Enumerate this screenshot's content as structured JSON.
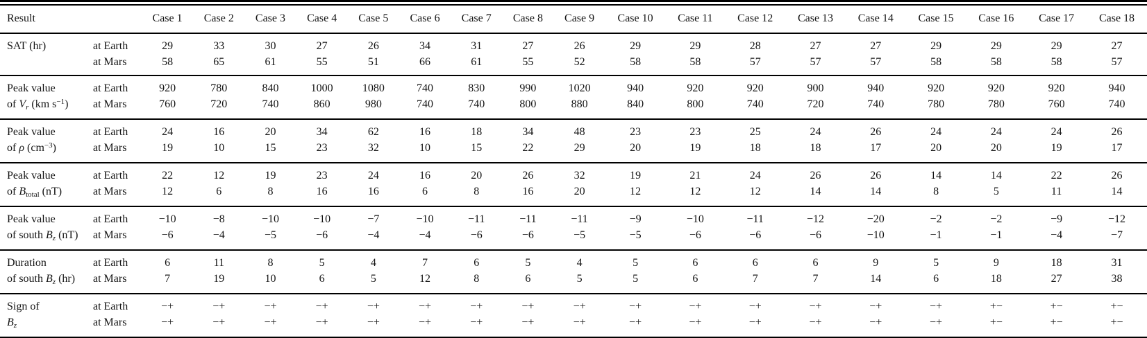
{
  "table": {
    "header": {
      "result_label": "Result",
      "cases": [
        "Case 1",
        "Case 2",
        "Case 3",
        "Case 4",
        "Case 5",
        "Case 6",
        "Case 7",
        "Case 8",
        "Case 9",
        "Case 10",
        "Case 11",
        "Case 12",
        "Case 13",
        "Case 14",
        "Case 15",
        "Case 16",
        "Case 17",
        "Case 18"
      ]
    },
    "groups": [
      {
        "id": "sat",
        "label_line1": [
          {
            "t": "SAT (hr)"
          }
        ],
        "label_line2": [],
        "rows": [
          {
            "location": "at Earth",
            "values": [
              "29",
              "33",
              "30",
              "27",
              "26",
              "34",
              "31",
              "27",
              "26",
              "29",
              "29",
              "28",
              "27",
              "27",
              "29",
              "29",
              "29",
              "27"
            ]
          },
          {
            "location": "at Mars",
            "values": [
              "58",
              "65",
              "61",
              "55",
              "51",
              "66",
              "61",
              "55",
              "52",
              "58",
              "58",
              "57",
              "57",
              "57",
              "58",
              "58",
              "58",
              "57"
            ]
          }
        ]
      },
      {
        "id": "peak-vr",
        "label_line1": [
          {
            "t": "Peak value"
          }
        ],
        "label_line2": [
          {
            "t": "of "
          },
          {
            "t": "V",
            "s": "i"
          },
          {
            "t": "r",
            "s": "subi"
          },
          {
            "t": " (km s"
          },
          {
            "t": "−1",
            "s": "sup"
          },
          {
            "t": ")"
          }
        ],
        "rows": [
          {
            "location": "at Earth",
            "values": [
              "920",
              "780",
              "840",
              "1000",
              "1080",
              "740",
              "830",
              "990",
              "1020",
              "940",
              "920",
              "920",
              "900",
              "940",
              "920",
              "920",
              "920",
              "940"
            ]
          },
          {
            "location": "at Mars",
            "values": [
              "760",
              "720",
              "740",
              "860",
              "980",
              "740",
              "740",
              "800",
              "880",
              "840",
              "800",
              "740",
              "720",
              "740",
              "780",
              "780",
              "760",
              "740"
            ]
          }
        ]
      },
      {
        "id": "peak-rho",
        "label_line1": [
          {
            "t": "Peak value"
          }
        ],
        "label_line2": [
          {
            "t": "of "
          },
          {
            "t": "ρ",
            "s": "i"
          },
          {
            "t": " (cm"
          },
          {
            "t": "−3",
            "s": "sup"
          },
          {
            "t": ")"
          }
        ],
        "rows": [
          {
            "location": "at Earth",
            "values": [
              "24",
              "16",
              "20",
              "34",
              "62",
              "16",
              "18",
              "34",
              "48",
              "23",
              "23",
              "25",
              "24",
              "26",
              "24",
              "24",
              "24",
              "26"
            ]
          },
          {
            "location": "at Mars",
            "values": [
              "19",
              "10",
              "15",
              "23",
              "32",
              "10",
              "15",
              "22",
              "29",
              "20",
              "19",
              "18",
              "18",
              "17",
              "20",
              "20",
              "19",
              "17"
            ]
          }
        ]
      },
      {
        "id": "peak-btotal",
        "label_line1": [
          {
            "t": "Peak value"
          }
        ],
        "label_line2": [
          {
            "t": "of "
          },
          {
            "t": "B",
            "s": "i"
          },
          {
            "t": "total",
            "s": "sub"
          },
          {
            "t": " (nT)"
          }
        ],
        "rows": [
          {
            "location": "at Earth",
            "values": [
              "22",
              "12",
              "19",
              "23",
              "24",
              "16",
              "20",
              "26",
              "32",
              "19",
              "21",
              "24",
              "26",
              "26",
              "14",
              "14",
              "22",
              "26"
            ]
          },
          {
            "location": "at Mars",
            "values": [
              "12",
              "6",
              "8",
              "16",
              "16",
              "6",
              "8",
              "16",
              "20",
              "12",
              "12",
              "12",
              "14",
              "14",
              "8",
              "5",
              "11",
              "14"
            ]
          }
        ]
      },
      {
        "id": "peak-south-bz",
        "label_line1": [
          {
            "t": "Peak value"
          }
        ],
        "label_line2": [
          {
            "t": "of south "
          },
          {
            "t": "B",
            "s": "i"
          },
          {
            "t": "z",
            "s": "subi"
          },
          {
            "t": " (nT)"
          }
        ],
        "rows": [
          {
            "location": "at Earth",
            "values": [
              "−10",
              "−8",
              "−10",
              "−10",
              "−7",
              "−10",
              "−11",
              "−11",
              "−11",
              "−9",
              "−10",
              "−11",
              "−12",
              "−20",
              "−2",
              "−2",
              "−9",
              "−12"
            ]
          },
          {
            "location": "at Mars",
            "values": [
              "−6",
              "−4",
              "−5",
              "−6",
              "−4",
              "−4",
              "−6",
              "−6",
              "−5",
              "−5",
              "−6",
              "−6",
              "−6",
              "−10",
              "−1",
              "−1",
              "−4",
              "−7"
            ]
          }
        ]
      },
      {
        "id": "duration-south-bz",
        "label_line1": [
          {
            "t": "Duration"
          }
        ],
        "label_line2": [
          {
            "t": "of south "
          },
          {
            "t": "B",
            "s": "i"
          },
          {
            "t": "z",
            "s": "subi"
          },
          {
            "t": " (hr)"
          }
        ],
        "rows": [
          {
            "location": "at Earth",
            "values": [
              "6",
              "11",
              "8",
              "5",
              "4",
              "7",
              "6",
              "5",
              "4",
              "5",
              "6",
              "6",
              "6",
              "9",
              "5",
              "9",
              "18",
              "31"
            ]
          },
          {
            "location": "at Mars",
            "values": [
              "7",
              "19",
              "10",
              "6",
              "5",
              "12",
              "8",
              "6",
              "5",
              "5",
              "6",
              "7",
              "7",
              "14",
              "6",
              "18",
              "27",
              "38"
            ]
          }
        ]
      },
      {
        "id": "sign-bz",
        "label_line1": [
          {
            "t": "Sign of"
          }
        ],
        "label_line2": [
          {
            "t": "B",
            "s": "i"
          },
          {
            "t": "z",
            "s": "subi"
          }
        ],
        "rows": [
          {
            "location": "at Earth",
            "values": [
              "−+",
              "−+",
              "−+",
              "−+",
              "−+",
              "−+",
              "−+",
              "−+",
              "−+",
              "−+",
              "−+",
              "−+",
              "−+",
              "−+",
              "−+",
              "+−",
              "+−",
              "+−"
            ]
          },
          {
            "location": "at Mars",
            "values": [
              "−+",
              "−+",
              "−+",
              "−+",
              "−+",
              "−+",
              "−+",
              "−+",
              "−+",
              "−+",
              "−+",
              "−+",
              "−+",
              "−+",
              "−+",
              "+−",
              "+−",
              "+−"
            ]
          }
        ]
      }
    ]
  },
  "colors": {
    "text": "#141414",
    "rule": "#000000",
    "background": "#ffffff"
  }
}
